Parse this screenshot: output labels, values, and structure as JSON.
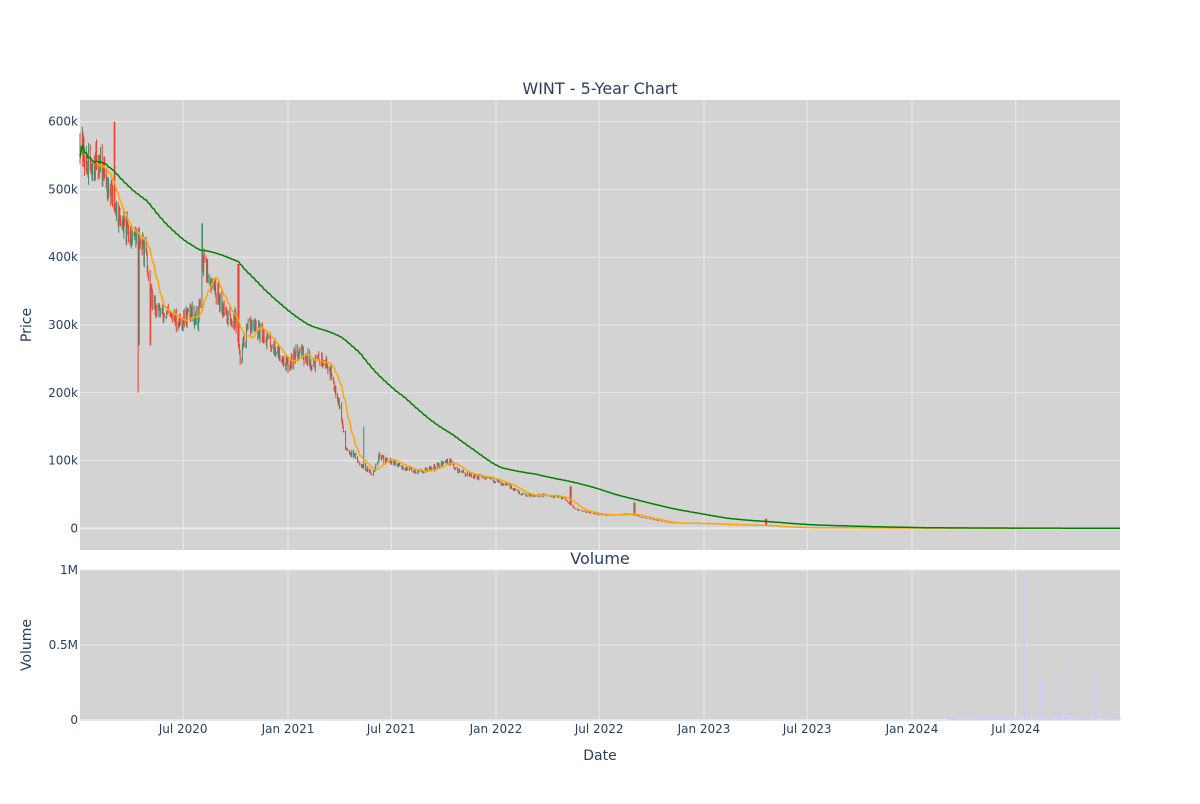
{
  "chart_data": [
    {
      "type": "candlestick",
      "title": "WINT - 5-Year Chart",
      "xlabel": "",
      "ylabel": "Price",
      "xlim": [
        "2020-01-02",
        "2024-12-31"
      ],
      "ylim": [
        -32000,
        632000
      ],
      "y_ticks": [
        0,
        100000,
        200000,
        300000,
        400000,
        500000,
        600000
      ],
      "y_tick_labels": [
        "0",
        "100k",
        "200k",
        "300k",
        "400k",
        "500k",
        "600k"
      ],
      "x_ticks": [
        "2020-07-01",
        "2021-01-01",
        "2021-07-01",
        "2022-01-01",
        "2022-07-01",
        "2023-01-01",
        "2023-07-01",
        "2024-01-01",
        "2024-07-01"
      ],
      "grid": true,
      "legend": "none",
      "colors": {
        "plot_bg": "#d3d3d3",
        "grid": "#e8eaf0",
        "up": "#3d8f6e",
        "down": "#ef4032",
        "short_ma": "#ffa500",
        "long_ma": "#008000"
      },
      "price_anchors": [
        [
          "2020-01-02",
          575000
        ],
        [
          "2020-01-15",
          530000
        ],
        [
          "2020-02-01",
          545000
        ],
        [
          "2020-02-20",
          510000
        ],
        [
          "2020-03-06",
          470000
        ],
        [
          "2020-03-20",
          440000
        ],
        [
          "2020-04-10",
          430000
        ],
        [
          "2020-04-25",
          410000
        ],
        [
          "2020-05-05",
          340000
        ],
        [
          "2020-05-20",
          320000
        ],
        [
          "2020-06-10",
          310000
        ],
        [
          "2020-06-28",
          305000
        ],
        [
          "2020-07-15",
          320000
        ],
        [
          "2020-07-28",
          310000
        ],
        [
          "2020-08-05",
          390000
        ],
        [
          "2020-08-18",
          365000
        ],
        [
          "2020-09-01",
          345000
        ],
        [
          "2020-09-15",
          310000
        ],
        [
          "2020-10-01",
          310000
        ],
        [
          "2020-10-08",
          250000
        ],
        [
          "2020-10-25",
          300000
        ],
        [
          "2020-11-20",
          285000
        ],
        [
          "2020-12-15",
          260000
        ],
        [
          "2021-01-01",
          240000
        ],
        [
          "2021-01-20",
          265000
        ],
        [
          "2021-02-10",
          245000
        ],
        [
          "2021-03-05",
          250000
        ],
        [
          "2021-03-20",
          225000
        ],
        [
          "2021-04-01",
          185000
        ],
        [
          "2021-04-12",
          120000
        ],
        [
          "2021-05-10",
          95000
        ],
        [
          "2021-05-28",
          80000
        ],
        [
          "2021-06-10",
          105000
        ],
        [
          "2021-07-15",
          92000
        ],
        [
          "2021-08-15",
          84000
        ],
        [
          "2021-09-10",
          88000
        ],
        [
          "2021-10-10",
          100000
        ],
        [
          "2021-10-25",
          85000
        ],
        [
          "2021-11-20",
          78000
        ],
        [
          "2022-01-01",
          70000
        ],
        [
          "2022-01-25",
          62000
        ],
        [
          "2022-02-15",
          50000
        ],
        [
          "2022-04-01",
          48000
        ],
        [
          "2022-05-01",
          45000
        ],
        [
          "2022-05-20",
          28000
        ],
        [
          "2022-07-01",
          20000
        ],
        [
          "2022-08-01",
          19000
        ],
        [
          "2022-08-20",
          22000
        ],
        [
          "2022-09-20",
          15000
        ],
        [
          "2022-11-01",
          8000
        ],
        [
          "2023-01-01",
          7000
        ],
        [
          "2023-03-01",
          5000
        ],
        [
          "2023-04-20",
          4000
        ],
        [
          "2023-05-15",
          2000
        ],
        [
          "2023-07-01",
          900
        ],
        [
          "2024-01-01",
          400
        ],
        [
          "2024-07-01",
          150
        ],
        [
          "2024-12-31",
          80
        ]
      ],
      "spikes": [
        [
          "2020-03-02",
          600000
        ],
        [
          "2020-04-12",
          200000
        ],
        [
          "2020-04-14",
          270000
        ],
        [
          "2020-05-04",
          270000
        ],
        [
          "2020-08-03",
          450000
        ],
        [
          "2020-10-06",
          390000
        ],
        [
          "2021-05-15",
          150000
        ],
        [
          "2021-06-18",
          108000
        ],
        [
          "2022-05-12",
          62000
        ],
        [
          "2022-09-01",
          38000
        ],
        [
          "2023-04-20",
          14000
        ]
      ],
      "volume_spikes": [
        [
          "2024-07-15",
          0.98
        ],
        [
          "2024-08-15",
          0.28
        ],
        [
          "2024-09-20",
          0.24
        ],
        [
          "2024-10-05",
          0.36
        ],
        [
          "2024-11-20",
          0.28
        ]
      ]
    },
    {
      "type": "bar",
      "title": "Volume",
      "xlabel": "Date",
      "ylabel": "Volume",
      "ylim": [
        0,
        1000000
      ],
      "y_ticks": [
        0,
        500000,
        1000000
      ],
      "y_tick_labels": [
        "0",
        "0.5M",
        "1M"
      ],
      "x_tick_labels": [
        "Jul 2020",
        "Jan 2021",
        "Jul 2021",
        "Jan 2022",
        "Jul 2022",
        "Jan 2023",
        "Jul 2023",
        "Jan 2024",
        "Jul 2024"
      ],
      "colors": {
        "bar": "#ccccff"
      }
    }
  ]
}
